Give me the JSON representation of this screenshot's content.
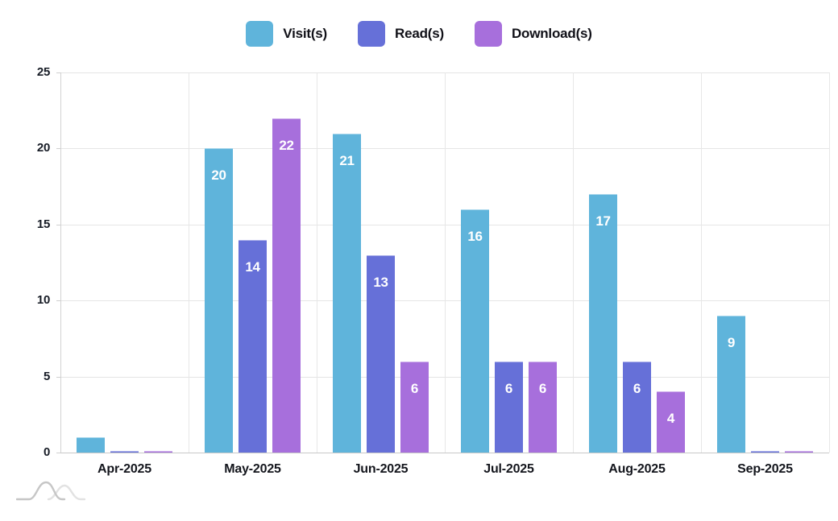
{
  "legend": {
    "items": [
      {
        "label": "Visit(s)",
        "color": "#5FB4DB"
      },
      {
        "label": "Read(s)",
        "color": "#6670D8"
      },
      {
        "label": "Download(s)",
        "color": "#A76FDC"
      }
    ]
  },
  "chart_data": {
    "type": "bar",
    "categories": [
      "Apr-2025",
      "May-2025",
      "Jun-2025",
      "Jul-2025",
      "Aug-2025",
      "Sep-2025"
    ],
    "series": [
      {
        "name": "Visit(s)",
        "color": "#5FB4DB",
        "values": [
          1,
          20,
          21,
          16,
          17,
          9
        ]
      },
      {
        "name": "Read(s)",
        "color": "#6670D8",
        "values": [
          0,
          14,
          13,
          6,
          6,
          0
        ]
      },
      {
        "name": "Download(s)",
        "color": "#A76FDC",
        "values": [
          0,
          22,
          6,
          6,
          4,
          0
        ]
      }
    ],
    "title": "",
    "xlabel": "",
    "ylabel": "",
    "ylim": [
      0,
      25
    ],
    "yticks": [
      0,
      5,
      10,
      15,
      20,
      25
    ],
    "grid": true,
    "legend_position": "top",
    "bar_value_labels": true,
    "min_labeled_value": 4
  },
  "watermark": {
    "icon": "mountain-waves-logo",
    "color": "#c6c6c6",
    "color_light": "#e2e2e2"
  }
}
